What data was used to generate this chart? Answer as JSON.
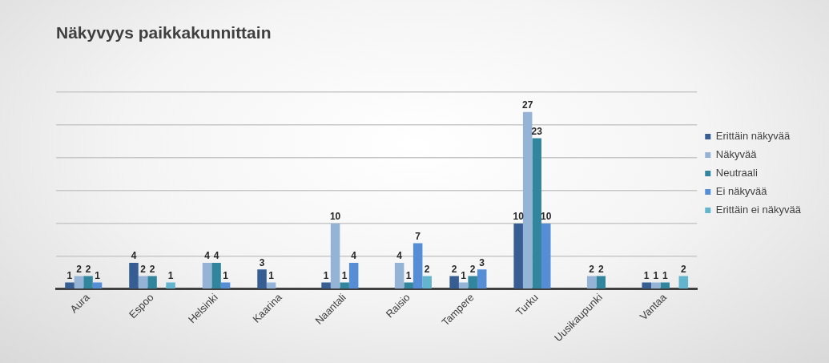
{
  "chart_data": {
    "type": "bar",
    "title": "Näkyvyys paikkakunnittain",
    "categories": [
      "Aura",
      "Espoo",
      "Helsinki",
      "Kaarina",
      "Naantali",
      "Raisio",
      "Tampere",
      "Turku",
      "Uusikaupunki",
      "Vantaa"
    ],
    "series": [
      {
        "name": "Erittäin näkyvää",
        "color": "#365e92",
        "values": [
          1,
          4,
          null,
          3,
          1,
          null,
          2,
          10,
          null,
          1
        ]
      },
      {
        "name": "Näkyvää",
        "color": "#95b3d7",
        "values": [
          2,
          2,
          4,
          1,
          10,
          4,
          1,
          27,
          2,
          1
        ]
      },
      {
        "name": "Neutraali",
        "color": "#31859c",
        "values": [
          2,
          2,
          4,
          null,
          1,
          1,
          2,
          23,
          2,
          1
        ]
      },
      {
        "name": "Ei näkyvää",
        "color": "#558ed5",
        "values": [
          1,
          null,
          1,
          null,
          4,
          7,
          3,
          10,
          null,
          null
        ]
      },
      {
        "name": "Erittäin ei näkyvää",
        "color": "#62b5cc",
        "values": [
          null,
          1,
          null,
          null,
          null,
          2,
          null,
          null,
          null,
          2
        ]
      }
    ],
    "tick_labels": "x",
    "grid": "y",
    "legend": "right",
    "data_labels": true
  }
}
